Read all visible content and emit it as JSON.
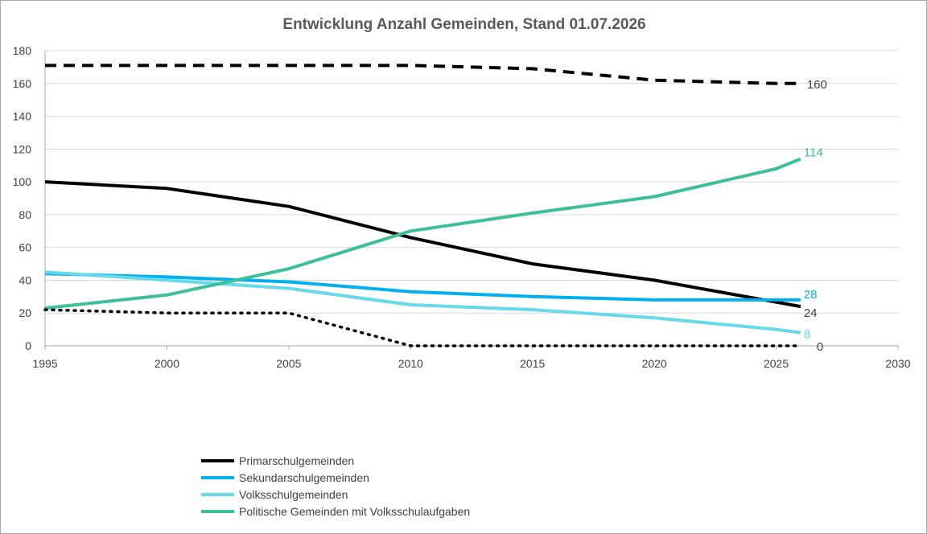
{
  "chart_data": {
    "type": "line",
    "title": "Entwicklung Anzahl Gemeinden, Stand 01.07.2026",
    "xlabel": "",
    "ylabel": "",
    "xlim": [
      1995,
      2030
    ],
    "ylim": [
      0,
      180
    ],
    "x_ticks": [
      1995,
      2000,
      2005,
      2010,
      2015,
      2020,
      2025,
      2030
    ],
    "y_ticks": [
      0,
      20,
      40,
      60,
      80,
      100,
      120,
      140,
      160,
      180
    ],
    "grid": "horizontal",
    "legend_position": "bottom-left",
    "series": [
      {
        "name": "Primarschulgemeinden",
        "color": "#000000",
        "style": "solid",
        "in_legend": true,
        "end_label": "24",
        "points": [
          [
            1995,
            100
          ],
          [
            2000,
            96
          ],
          [
            2005,
            85
          ],
          [
            2010,
            66
          ],
          [
            2015,
            50
          ],
          [
            2020,
            40
          ],
          [
            2026,
            24
          ]
        ]
      },
      {
        "name": "Sekundarschulgemeinden",
        "color": "#00b0f0",
        "style": "solid",
        "in_legend": true,
        "end_label": "28",
        "points": [
          [
            1995,
            44
          ],
          [
            2000,
            42
          ],
          [
            2005,
            39
          ],
          [
            2010,
            33
          ],
          [
            2015,
            30
          ],
          [
            2020,
            28
          ],
          [
            2026,
            28
          ]
        ]
      },
      {
        "name": "Volksschulgemeinden",
        "color": "#66d9ea",
        "style": "solid",
        "in_legend": true,
        "end_label": "8",
        "points": [
          [
            1995,
            45
          ],
          [
            2000,
            40
          ],
          [
            2005,
            35
          ],
          [
            2010,
            25
          ],
          [
            2015,
            22
          ],
          [
            2020,
            17
          ],
          [
            2025,
            10
          ],
          [
            2026,
            8
          ]
        ]
      },
      {
        "name": "Politische Gemeinden mit Volksschulaufgaben",
        "color": "#3dbf9c",
        "style": "solid",
        "in_legend": true,
        "end_label": "114",
        "points": [
          [
            1995,
            23
          ],
          [
            2000,
            31
          ],
          [
            2005,
            47
          ],
          [
            2010,
            70
          ],
          [
            2015,
            81
          ],
          [
            2020,
            91
          ],
          [
            2025,
            108
          ],
          [
            2026,
            114
          ]
        ]
      },
      {
        "name": "",
        "color": "#000000",
        "style": "dashed",
        "in_legend": false,
        "end_label": "160",
        "points": [
          [
            1995,
            171
          ],
          [
            2000,
            171
          ],
          [
            2005,
            171
          ],
          [
            2010,
            171
          ],
          [
            2015,
            169
          ],
          [
            2020,
            162
          ],
          [
            2025,
            160
          ],
          [
            2026,
            160
          ]
        ]
      },
      {
        "name": "",
        "color": "#000000",
        "style": "dotted",
        "in_legend": false,
        "end_label": "0",
        "points": [
          [
            1995,
            22
          ],
          [
            2000,
            20
          ],
          [
            2005,
            20
          ],
          [
            2010,
            0
          ],
          [
            2015,
            0
          ],
          [
            2020,
            0
          ],
          [
            2026,
            0
          ]
        ]
      }
    ]
  }
}
